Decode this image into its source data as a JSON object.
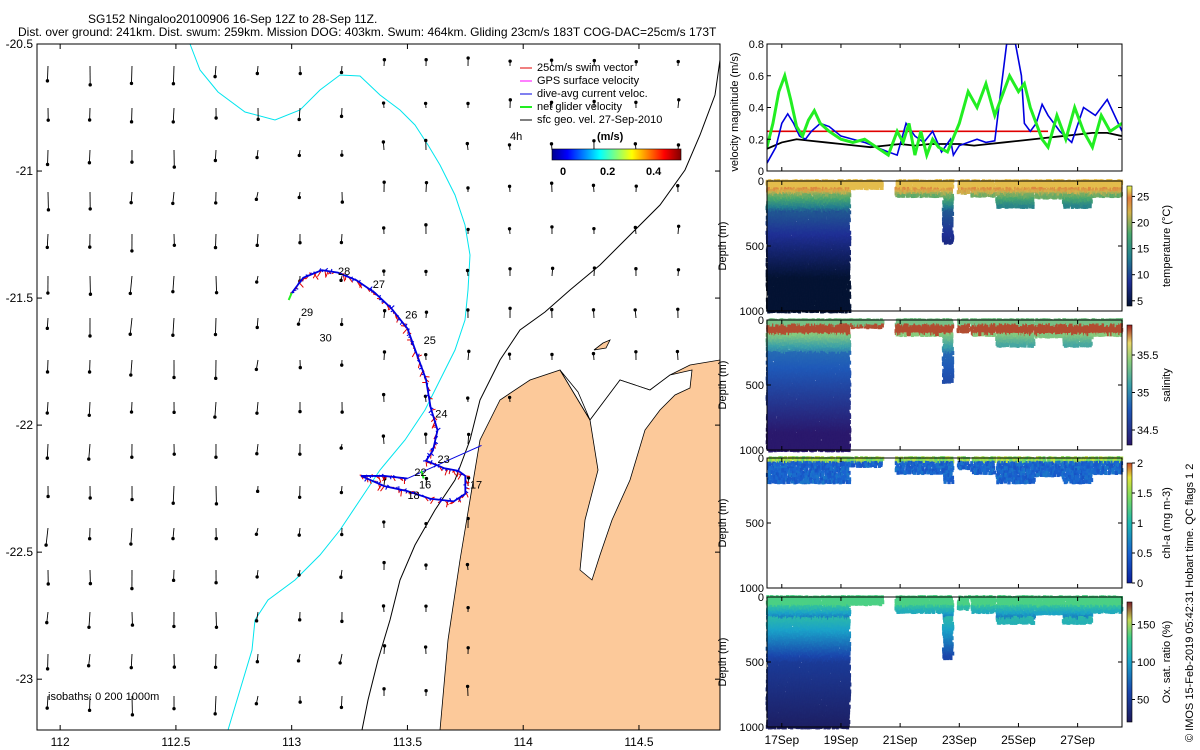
{
  "title_line1": "SG152 Ningaloo20100906 16-Sep 12Z to 28-Sep 11Z.",
  "title_line2": "Dist. over ground: 241km. Dist. swum: 259km. Mission DOG: 403km. Swum: 464km. Gliding 23cm/s 183T COG-DAC=25cm/s 173T",
  "colors": {
    "land": "#FCC99A",
    "isobath_200": "#00E5EE",
    "isobath_1000": "#000000",
    "swim": "#E00000",
    "dac": "#0000E0",
    "net": "#22EE22",
    "arrow": "#000000",
    "sfc_line": "#000000"
  },
  "chart_data": [
    {
      "id": "map",
      "type": "scatter",
      "xlim": [
        111.9,
        114.85
      ],
      "ylim": [
        -23.2,
        -20.5
      ],
      "xticks": [
        "112",
        "112.5",
        "113",
        "113.5",
        "114",
        "114.5"
      ],
      "yticks": [
        "-20.5",
        "-21",
        "-21.5",
        "-22",
        "-22.5",
        "-23"
      ],
      "legend": {
        "items": [
          "25cm/s swim vector",
          "GPS surface velocity",
          "dive-avg current veloc.",
          "net glider velocity",
          "sfc geo. vel. 27-Sep-2010"
        ],
        "time_label": "4h",
        "units": "(m/s)",
        "colorbar_ticks": [
          "0",
          "0.2",
          "0.4"
        ]
      },
      "isobath_text": "isobaths: 0   200  1000m",
      "day_labels": [
        {
          "t": "16",
          "lon": 113.55,
          "lat": -22.25
        },
        {
          "t": "17",
          "lon": 113.77,
          "lat": -22.25
        },
        {
          "t": "18",
          "lon": 113.5,
          "lat": -22.29
        },
        {
          "t": "22",
          "lon": 113.53,
          "lat": -22.2
        },
        {
          "t": "23",
          "lon": 113.63,
          "lat": -22.15
        },
        {
          "t": "24",
          "lon": 113.62,
          "lat": -21.97
        },
        {
          "t": "25",
          "lon": 113.57,
          "lat": -21.68
        },
        {
          "t": "26",
          "lon": 113.49,
          "lat": -21.58
        },
        {
          "t": "27",
          "lon": 113.35,
          "lat": -21.46
        },
        {
          "t": "28",
          "lon": 113.2,
          "lat": -21.41
        },
        {
          "t": "29",
          "lon": 113.04,
          "lat": -21.57
        },
        {
          "t": "30",
          "lon": 113.12,
          "lat": -21.67
        }
      ],
      "glider_track": [
        [
          113.0,
          -21.48
        ],
        [
          113.05,
          -21.42
        ],
        [
          113.13,
          -21.39
        ],
        [
          113.2,
          -21.4
        ],
        [
          113.28,
          -21.43
        ],
        [
          113.36,
          -21.48
        ],
        [
          113.43,
          -21.54
        ],
        [
          113.5,
          -21.62
        ],
        [
          113.54,
          -21.72
        ],
        [
          113.58,
          -21.82
        ],
        [
          113.6,
          -21.93
        ],
        [
          113.63,
          -22.02
        ],
        [
          113.61,
          -22.1
        ],
        [
          113.58,
          -22.14
        ],
        [
          113.66,
          -22.17
        ],
        [
          113.72,
          -22.18
        ],
        [
          113.75,
          -22.2
        ],
        [
          113.75,
          -22.27
        ],
        [
          113.7,
          -22.3
        ],
        [
          113.6,
          -22.29
        ],
        [
          113.5,
          -22.26
        ],
        [
          113.4,
          -22.24
        ],
        [
          113.3,
          -22.2
        ],
        [
          113.4,
          -22.2
        ],
        [
          113.5,
          -22.21
        ]
      ]
    },
    {
      "id": "velocity",
      "type": "line",
      "ylabel": "velocity magnitude (m/s)",
      "ylim": [
        0,
        0.8
      ],
      "yticks": [
        "0",
        "0.2",
        "0.4",
        "0.6",
        "0.8"
      ],
      "xlim": [
        16.5,
        28.5
      ],
      "series": [
        {
          "name": "swim",
          "color": "#E00000",
          "x": [
            16.5,
            20.9,
            20.9,
            26.0
          ],
          "y": [
            0.25,
            0.25,
            0.25,
            0.25
          ]
        },
        {
          "name": "sfc",
          "color": "#000000",
          "x": [
            16.5,
            17.0,
            17.5,
            18.0,
            18.5,
            19.0,
            19.5,
            20.0,
            20.5,
            21.0,
            21.5,
            22.0,
            22.5,
            23.0,
            23.5,
            24.0,
            24.5,
            25.0,
            25.5,
            26.0,
            26.5,
            27.0,
            27.5,
            28.0,
            28.5
          ],
          "y": [
            0.14,
            0.18,
            0.2,
            0.19,
            0.18,
            0.17,
            0.16,
            0.15,
            0.16,
            0.17,
            0.16,
            0.17,
            0.17,
            0.17,
            0.16,
            0.17,
            0.18,
            0.19,
            0.2,
            0.21,
            0.22,
            0.23,
            0.24,
            0.24,
            0.22
          ]
        },
        {
          "name": "dac",
          "color": "#0000E0",
          "x": [
            16.5,
            16.8,
            17.0,
            17.2,
            17.4,
            17.6,
            17.8,
            18.0,
            18.3,
            18.6,
            19.0,
            19.4,
            19.8,
            20.2,
            20.6,
            20.9,
            21.2,
            21.5,
            21.8,
            22.1,
            22.4,
            22.7,
            22.8,
            23.0,
            23.3,
            23.6,
            23.9,
            24.2,
            24.4,
            24.6,
            24.9,
            25.1,
            25.2,
            25.4,
            25.6,
            25.8,
            26.0,
            26.4,
            26.8,
            27.2,
            27.6,
            28.0,
            28.5
          ],
          "y": [
            0.05,
            0.15,
            0.3,
            0.36,
            0.3,
            0.22,
            0.2,
            0.25,
            0.3,
            0.28,
            0.22,
            0.2,
            0.18,
            0.15,
            0.12,
            0.1,
            0.3,
            0.22,
            0.18,
            0.25,
            0.12,
            0.2,
            0.1,
            0.16,
            0.18,
            0.2,
            0.18,
            0.19,
            0.5,
            0.8,
            0.8,
            0.6,
            0.3,
            0.25,
            0.3,
            0.42,
            0.35,
            0.25,
            0.18,
            0.4,
            0.35,
            0.45,
            0.25
          ]
        },
        {
          "name": "net",
          "color": "#22EE22",
          "x": [
            16.5,
            16.7,
            16.9,
            17.1,
            17.3,
            17.5,
            17.7,
            17.9,
            18.1,
            18.3,
            18.6,
            19.0,
            19.4,
            19.8,
            20.2,
            20.6,
            20.9,
            21.1,
            21.3,
            21.5,
            21.7,
            21.9,
            22.1,
            22.3,
            22.6,
            23.0,
            23.3,
            23.6,
            23.9,
            24.2,
            24.4,
            24.7,
            25.0,
            25.2,
            25.4,
            25.6,
            25.8,
            26.0,
            26.3,
            26.6,
            26.9,
            27.2,
            27.5,
            27.8,
            28.1,
            28.5
          ],
          "y": [
            0.15,
            0.3,
            0.5,
            0.6,
            0.45,
            0.28,
            0.22,
            0.32,
            0.38,
            0.3,
            0.25,
            0.2,
            0.18,
            0.2,
            0.15,
            0.1,
            0.25,
            0.18,
            0.3,
            0.1,
            0.25,
            0.1,
            0.2,
            0.15,
            0.12,
            0.3,
            0.5,
            0.4,
            0.55,
            0.35,
            0.45,
            0.6,
            0.5,
            0.55,
            0.4,
            0.3,
            0.2,
            0.15,
            0.35,
            0.2,
            0.4,
            0.25,
            0.15,
            0.35,
            0.25,
            0.3
          ]
        }
      ]
    },
    {
      "id": "temperature",
      "type": "heatmap",
      "ylabel": "Depth (m)",
      "ylim": [
        1000,
        0
      ],
      "yticks": [
        "0",
        "500",
        "1000"
      ],
      "colorbar_label": "temperature (°C)",
      "colorbar_ticks": [
        "5",
        "10",
        "15",
        "20",
        "25"
      ],
      "vrange": [
        4,
        27
      ]
    },
    {
      "id": "salinity",
      "type": "heatmap",
      "ylabel": "Depth (m)",
      "ylim": [
        1000,
        0
      ],
      "yticks": [
        "0",
        "500",
        "1000"
      ],
      "colorbar_label": "salinity",
      "colorbar_ticks": [
        "34.5",
        "35",
        "35.5"
      ],
      "vrange": [
        34.3,
        35.9
      ]
    },
    {
      "id": "chla",
      "type": "heatmap",
      "ylabel": "Depth (m)",
      "ylim": [
        1000,
        0
      ],
      "yticks": [
        "0",
        "500",
        "1000"
      ],
      "colorbar_label": "chl-a (mg m-3)",
      "colorbar_ticks": [
        "0",
        "0.5",
        "1",
        "1.5",
        "2"
      ],
      "vrange": [
        0,
        2
      ]
    },
    {
      "id": "oxygen",
      "type": "heatmap",
      "ylabel": "Depth (m)",
      "ylim": [
        1000,
        0
      ],
      "yticks": [
        "0",
        "500",
        "1000"
      ],
      "colorbar_label": "Ox. sat. ratio (%)",
      "colorbar_ticks": [
        "50",
        "100",
        "150"
      ],
      "vrange": [
        20,
        180
      ]
    }
  ],
  "time_axis": {
    "xlim": [
      16.5,
      28.5
    ],
    "ticks": [
      {
        "day": 17,
        "label": "17Sep"
      },
      {
        "day": 19,
        "label": "19Sep"
      },
      {
        "day": 21,
        "label": "21Sep"
      },
      {
        "day": 23,
        "label": "23Sep"
      },
      {
        "day": 25,
        "label": "25Sep"
      },
      {
        "day": 27,
        "label": "27Sep"
      }
    ]
  },
  "footer": "© IMOS 15-Feb-2019 05:42:31 Hobart time. QC flags 1  2"
}
